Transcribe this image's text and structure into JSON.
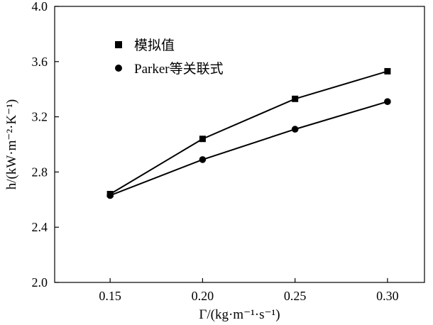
{
  "chart_data": {
    "type": "line",
    "x": [
      0.15,
      0.2,
      0.25,
      0.3
    ],
    "x_tick_labels": [
      "0.15",
      "0.20",
      "0.25",
      "0.30"
    ],
    "y_tick_labels": [
      "2.0",
      "2.4",
      "2.8",
      "3.2",
      "3.6",
      "4.0"
    ],
    "y_ticks": [
      2.0,
      2.4,
      2.8,
      3.2,
      3.6,
      4.0
    ],
    "xlim": [
      0.12,
      0.32
    ],
    "ylim": [
      2.0,
      4.0
    ],
    "xlabel": "Γ/(kg·m⁻¹·s⁻¹)",
    "ylabel": "h/(kW·m⁻²·K⁻¹)",
    "legend_position": "top-left",
    "grid": false,
    "series": [
      {
        "name": "模拟值",
        "marker": "square",
        "color": "#000000",
        "values": [
          2.64,
          3.04,
          3.33,
          3.53
        ]
      },
      {
        "name": "Parker等关联式",
        "marker": "circle",
        "color": "#000000",
        "values": [
          2.63,
          2.89,
          3.11,
          3.31
        ]
      }
    ]
  }
}
